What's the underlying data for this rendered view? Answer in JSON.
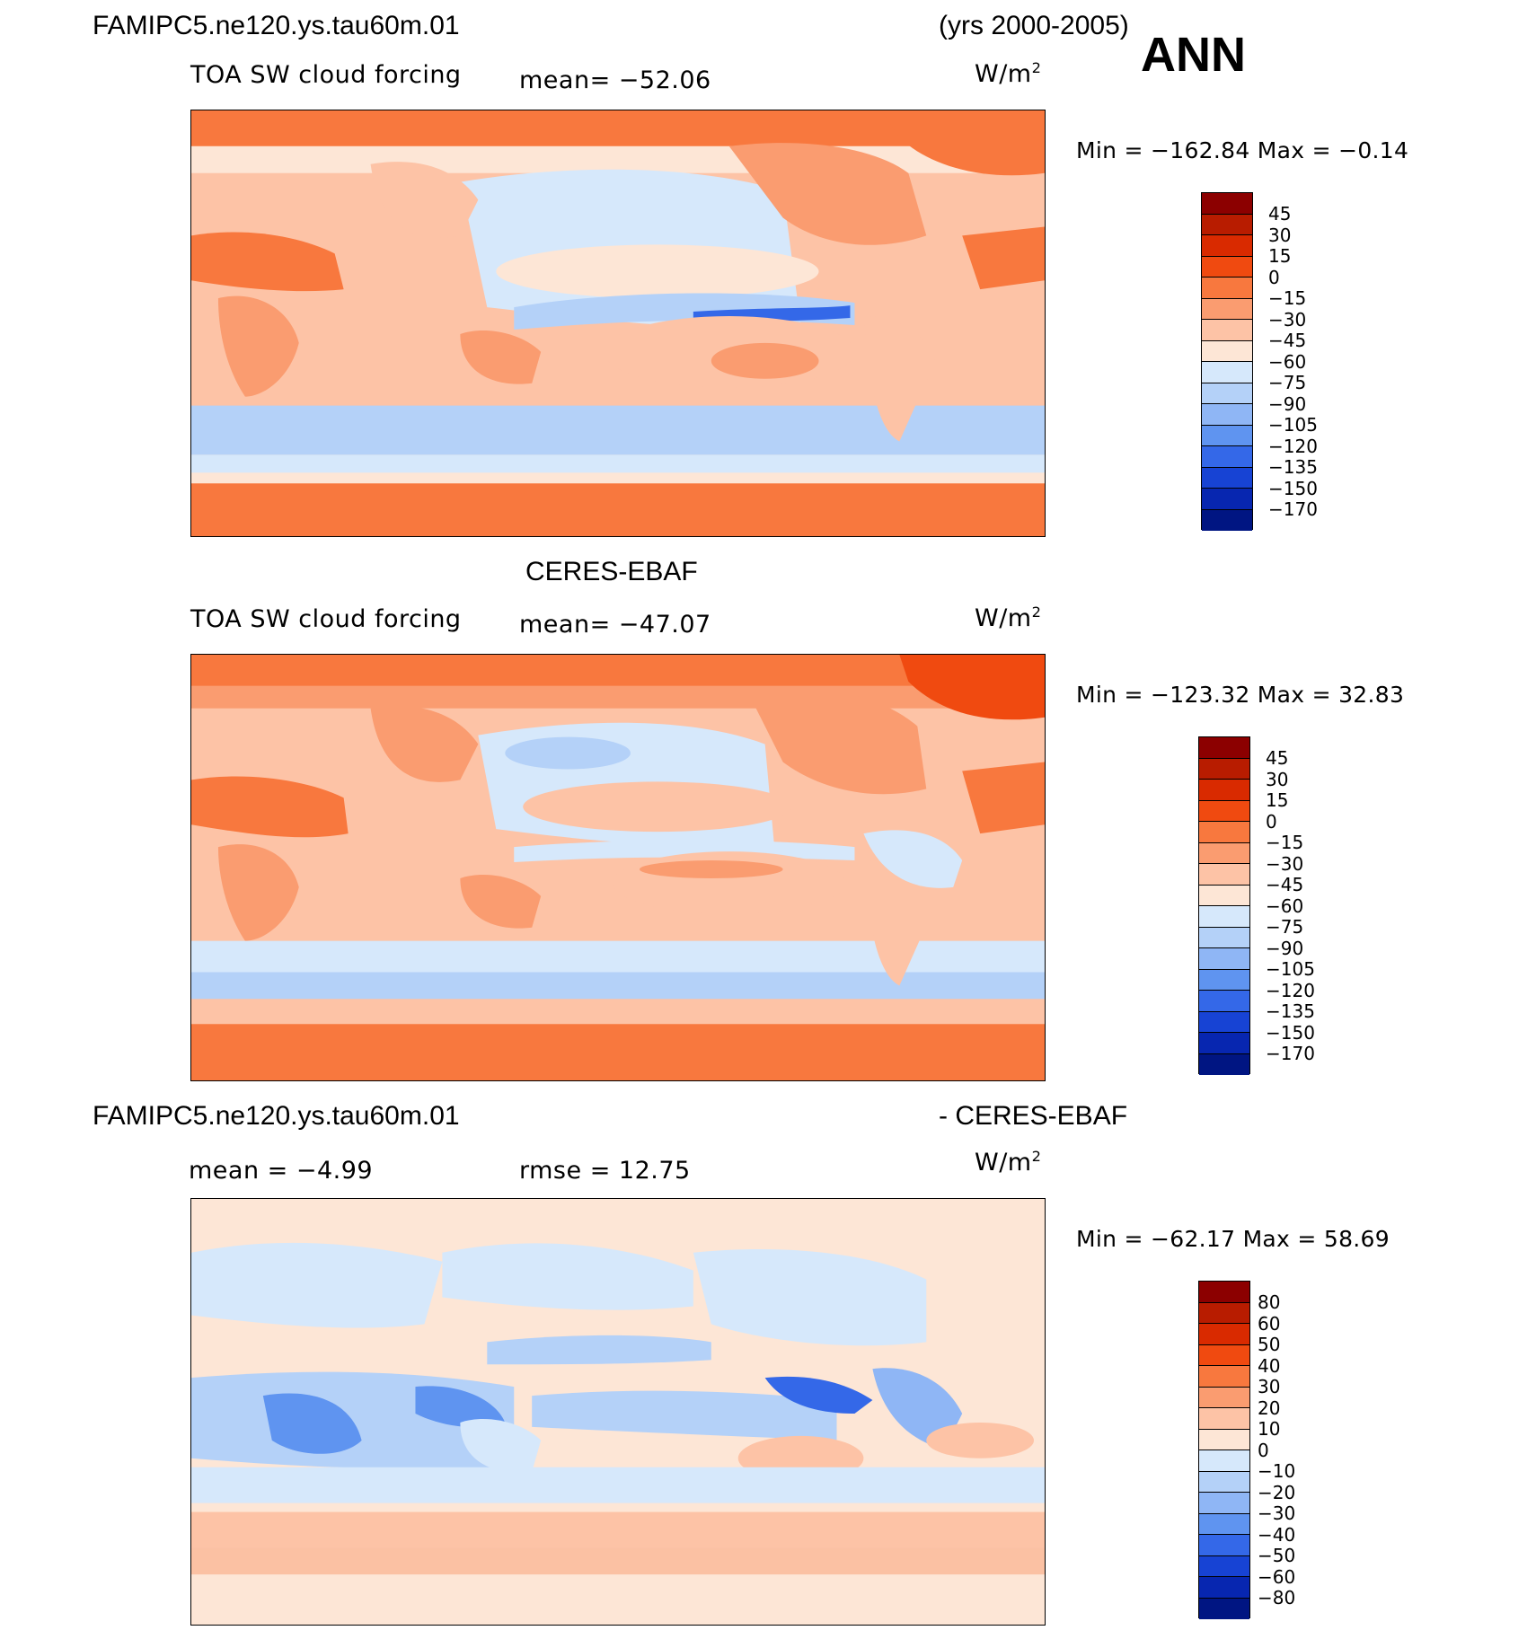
{
  "header": {
    "case": "FAMIPC5.ne120.ys.tau60m.01",
    "years": "(yrs 2000-2005)",
    "season": "ANN"
  },
  "panels": [
    {
      "title": "",
      "left": "TOA SW cloud forcing",
      "middle": "mean=  −52.06",
      "units": "W/m",
      "units_sup": "2",
      "min_label": "Min  =  −162.84  Max  =    −0.14",
      "colorbar": {
        "labels": [
          "45",
          "30",
          "15",
          "0",
          "−15",
          "−30",
          "−45",
          "−60",
          "−75",
          "−90",
          "−105",
          "−120",
          "−135",
          "−150",
          "−170"
        ],
        "colors": [
          "#8c0000",
          "#b81c00",
          "#d92a00",
          "#f04a10",
          "#f8783e",
          "#fa9c70",
          "#fdc3a6",
          "#fde6d6",
          "#d6e8fb",
          "#b4d1f8",
          "#8fb6f5",
          "#5f94f0",
          "#3468e8",
          "#1743d4",
          "#0726b0",
          "#001582"
        ]
      },
      "map_theme": "model"
    },
    {
      "title": "CERES-EBAF",
      "left": "TOA SW cloud forcing",
      "middle": "mean=  −47.07",
      "units": "W/m",
      "units_sup": "2",
      "min_label": "Min  =  −123.32  Max  =    32.83",
      "colorbar": {
        "labels": [
          "45",
          "30",
          "15",
          "0",
          "−15",
          "−30",
          "−45",
          "−60",
          "−75",
          "−90",
          "−105",
          "−120",
          "−135",
          "−150",
          "−170"
        ],
        "colors": [
          "#8c0000",
          "#b81c00",
          "#d92a00",
          "#f04a10",
          "#f8783e",
          "#fa9c70",
          "#fdc3a6",
          "#fde6d6",
          "#d6e8fb",
          "#b4d1f8",
          "#8fb6f5",
          "#5f94f0",
          "#3468e8",
          "#1743d4",
          "#0726b0",
          "#001582"
        ]
      },
      "map_theme": "obs"
    },
    {
      "title_left": "FAMIPC5.ne120.ys.tau60m.01",
      "title_right": "- CERES-EBAF",
      "left": "mean  =    −4.99",
      "middle": "rmse  =    12.75",
      "units": "W/m",
      "units_sup": "2",
      "min_label": "Min  =  −62.17  Max  =    58.69",
      "colorbar": {
        "labels": [
          "80",
          "60",
          "50",
          "40",
          "30",
          "20",
          "10",
          "0",
          "−10",
          "−20",
          "−30",
          "−40",
          "−50",
          "−60",
          "−80"
        ],
        "colors": [
          "#8c0000",
          "#b81c00",
          "#d92a00",
          "#f04a10",
          "#f8783e",
          "#fa9c70",
          "#fdc3a6",
          "#fde6d6",
          "#d6e8fb",
          "#b4d1f8",
          "#8fb6f5",
          "#5f94f0",
          "#3468e8",
          "#1743d4",
          "#0726b0",
          "#001582"
        ]
      },
      "map_theme": "diff"
    }
  ]
}
